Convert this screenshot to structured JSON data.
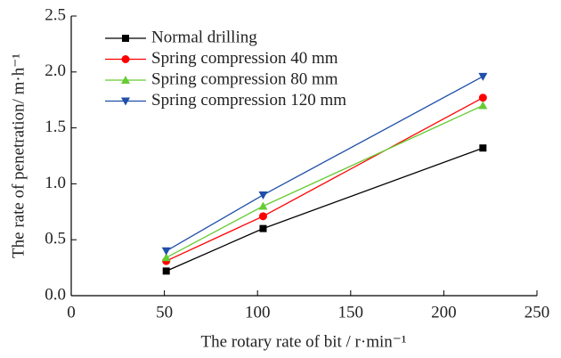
{
  "chart_data": {
    "type": "line",
    "xlabel": "The rotary rate of bit / r·min⁻¹",
    "ylabel": "The  rate of penetration/ m·h⁻¹",
    "x": [
      51,
      103,
      221
    ],
    "series": [
      {
        "name": "Normal drilling",
        "color": "#000000",
        "marker": "square",
        "values": [
          0.22,
          0.6,
          1.32
        ]
      },
      {
        "name": "Spring compression 40 mm",
        "color": "#ff0000",
        "marker": "circle",
        "values": [
          0.31,
          0.71,
          1.77
        ]
      },
      {
        "name": "Spring compression 80 mm",
        "color": "#66cc33",
        "marker": "triangle-up",
        "values": [
          0.34,
          0.8,
          1.7
        ]
      },
      {
        "name": "Spring compression 120 mm",
        "color": "#1f4fa8",
        "marker": "triangle-down",
        "values": [
          0.4,
          0.9,
          1.96
        ]
      }
    ],
    "xlim": [
      0,
      250
    ],
    "xticks": [
      0,
      50,
      100,
      150,
      200,
      250
    ],
    "ylim": [
      0,
      2.5
    ],
    "yticks": [
      {
        "value": 0,
        "label": "0.0"
      },
      0.5,
      {
        "value": 1,
        "label": "1.0"
      },
      1.5,
      {
        "value": 2,
        "label": "2.0"
      },
      2.5
    ],
    "legend": "upper-left"
  }
}
